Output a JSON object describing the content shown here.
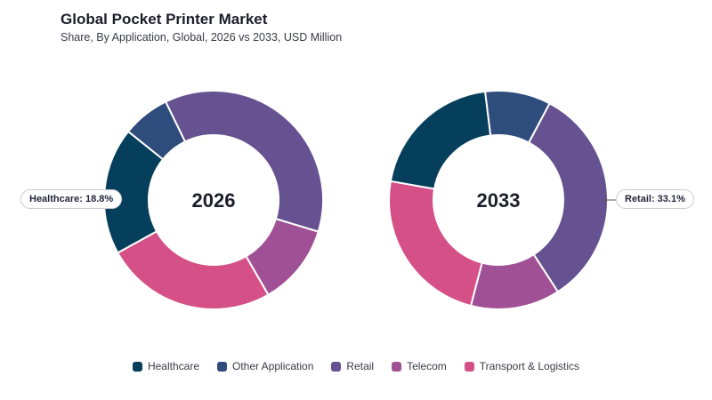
{
  "title": "Global Pocket Printer Market",
  "subtitle": "Share, By Application, Global, 2026 vs 2033, USD Million",
  "colors": {
    "Healthcare": "#063f5c",
    "Other Application": "#2e4c7c",
    "Retail": "#665191",
    "Telecom": "#a05195",
    "Transport & Logistics": "#d45087"
  },
  "chart_data": [
    {
      "type": "pie",
      "center_label": "2026",
      "categories": [
        "Retail",
        "Telecom",
        "Transport & Logistics",
        "Healthcare",
        "Other Application"
      ],
      "values": [
        36.9,
        12.0,
        25.3,
        18.8,
        7.0
      ],
      "callout": "Healthcare: 18.8%"
    },
    {
      "type": "pie",
      "center_label": "2033",
      "categories": [
        "Other Application",
        "Retail",
        "Telecom",
        "Transport & Logistics",
        "Healthcare"
      ],
      "values": [
        9.7,
        33.1,
        13.2,
        23.7,
        20.3
      ],
      "callout": "Retail: 33.1%"
    }
  ],
  "legend": [
    "Healthcare",
    "Other Application",
    "Retail",
    "Telecom",
    "Transport & Logistics"
  ]
}
